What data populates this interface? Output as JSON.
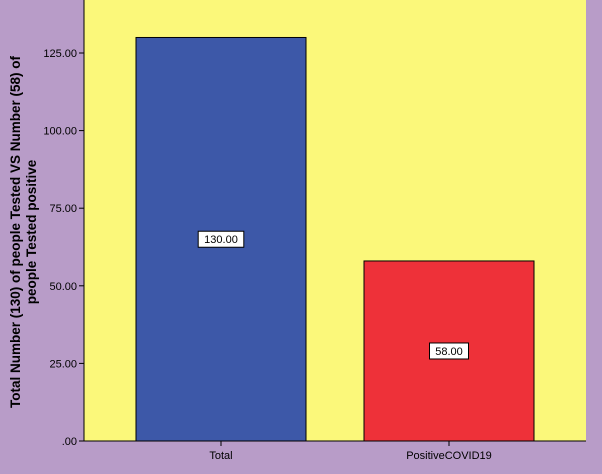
{
  "colors": {
    "background": "#b89cc8",
    "plot_area": "#fbf87a",
    "bar_total": "#3d58a8",
    "bar_positive": "#ee3139",
    "label_box": "#ffffff",
    "axis": "#000000"
  },
  "chart_data": {
    "type": "bar",
    "title": "",
    "xlabel": "",
    "ylabel": "Total Number  (130) of people Tested VS Number (58) of people Tested positive",
    "ylabel_lines": [
      "Total Number  (130) of people Tested VS Number (58) of",
      "people Tested positive"
    ],
    "categories": [
      "Total",
      "PositiveCOVID19"
    ],
    "values": [
      130,
      58
    ],
    "data_labels": [
      "130.00",
      "58.00"
    ],
    "ylim": [
      0,
      140
    ],
    "yticks": [
      0,
      25,
      50,
      75,
      100,
      125
    ],
    "ytick_labels": [
      ".00",
      "25.00",
      "50.00",
      "75.00",
      "100.00",
      "125.00"
    ],
    "grid": false,
    "legend": "none"
  }
}
